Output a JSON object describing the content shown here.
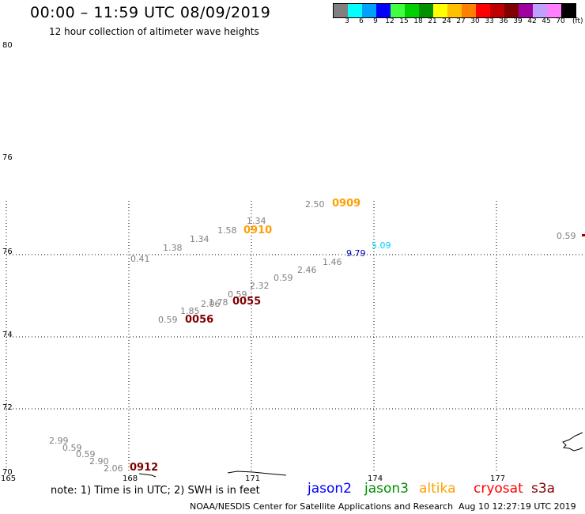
{
  "header": {
    "title": "00:00 – 11:59 UTC 08/09/2019",
    "subtitle": "12 hour collection of altimeter wave heights"
  },
  "scale": {
    "unit": "(ft)",
    "colors": [
      "#808080",
      "#00ffff",
      "#00a0ff",
      "#0000ff",
      "#40ff40",
      "#00d000",
      "#009000",
      "#ffff00",
      "#ffc000",
      "#ff8000",
      "#ff0000",
      "#c00000",
      "#800000",
      "#a000a0",
      "#c0a0ff",
      "#ff80ff",
      "#000000"
    ],
    "labels": [
      "3",
      "6",
      "9",
      "12",
      "15",
      "18",
      "21",
      "24",
      "27",
      "30",
      "33",
      "36",
      "39",
      "42",
      "45",
      "70"
    ]
  },
  "axes": {
    "lat_labels": [
      "80",
      "76",
      "76",
      "74",
      "72",
      "70"
    ],
    "lon_labels": [
      "165",
      "168",
      "171",
      "174",
      "177"
    ]
  },
  "wave_values": [
    {
      "text": "2.50"
    },
    {
      "text": "1.34"
    },
    {
      "text": "1.58"
    },
    {
      "text": "1.34"
    },
    {
      "text": "1.38"
    },
    {
      "text": "0.41"
    },
    {
      "text": "0.59"
    },
    {
      "text": "5.09"
    },
    {
      "text": "1.46"
    },
    {
      "text": "2.46"
    },
    {
      "text": "0.59"
    },
    {
      "text": "2.32"
    },
    {
      "text": "0.59"
    },
    {
      "text": "1.78"
    },
    {
      "text": "2.06"
    },
    {
      "text": "1.85"
    },
    {
      "text": "0.59"
    },
    {
      "text": "2.99"
    },
    {
      "text": "0.59"
    },
    {
      "text": "0.59"
    },
    {
      "text": "2.90"
    },
    {
      "text": "2.06"
    },
    {
      "text": "9.79"
    }
  ],
  "pass_times": [
    {
      "text": "0909",
      "color": "#ffa000"
    },
    {
      "text": "0910",
      "color": "#ffa000"
    },
    {
      "text": "0055",
      "color": "#800000"
    },
    {
      "text": "0056",
      "color": "#800000"
    },
    {
      "text": "0912",
      "color": "#800000"
    }
  ],
  "note": "note: 1) Time is in UTC; 2) SWH is in feet",
  "legend": [
    {
      "name": "jason2",
      "color": "#0000ff"
    },
    {
      "name": "jason3",
      "color": "#009000"
    },
    {
      "name": "altika",
      "color": "#ffa000"
    },
    {
      "name": "cryosat",
      "color": "#ff0000"
    },
    {
      "name": "s3a",
      "color": "#800000"
    }
  ],
  "footer": {
    "credit": "NOAA/NESDIS Center for Satellite Applications and Research",
    "timestamp": "Aug 10 12:27:19 UTC 2019"
  }
}
